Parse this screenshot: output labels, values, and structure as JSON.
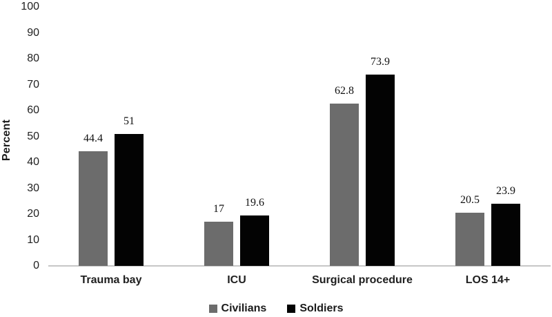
{
  "chart_data": {
    "type": "bar",
    "categories": [
      "Trauma bay",
      "ICU",
      "Surgical procedure",
      "LOS 14+"
    ],
    "series": [
      {
        "name": "Civilians",
        "color": "#6c6c6c",
        "values": [
          44.4,
          17,
          62.8,
          20.5
        ],
        "labels": [
          "44.4",
          "17",
          "62.8",
          "20.5"
        ]
      },
      {
        "name": "Soldiers",
        "color": "#030303",
        "values": [
          51,
          19.6,
          73.9,
          23.9
        ],
        "labels": [
          "51",
          "19.6",
          "73.9",
          "23.9"
        ]
      }
    ],
    "title": "",
    "xlabel": "",
    "ylabel": "Percent",
    "ylim": [
      0,
      100
    ],
    "yticks": [
      0,
      10,
      20,
      30,
      40,
      50,
      60,
      70,
      80,
      90,
      100
    ],
    "grid": false,
    "tick_marks": false,
    "legend_position": "bottom",
    "data_labels_shown": true
  },
  "colors": {
    "axis_line": "#c6c6c6",
    "text": "#1a1a1a",
    "background": "#ffffff"
  }
}
